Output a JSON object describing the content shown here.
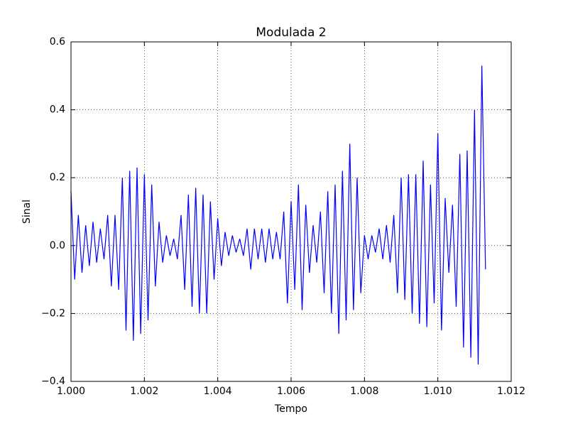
{
  "chart_data": {
    "type": "line",
    "title": "Modulada 2",
    "x_label": "Tempo",
    "y_label": "Sinal",
    "x": [
      1.0,
      1.0001,
      1.0002,
      1.0003,
      1.0004,
      1.0005,
      1.0006,
      1.0007,
      1.0008,
      1.0009,
      1.001,
      1.0011,
      1.0012,
      1.0013,
      1.0014,
      1.0015,
      1.0016,
      1.0017,
      1.0018,
      1.0019,
      1.002,
      1.0021,
      1.0022,
      1.0023,
      1.0024,
      1.0025,
      1.0026,
      1.0027,
      1.0028,
      1.0029,
      1.003,
      1.0031,
      1.0032,
      1.0033,
      1.0034,
      1.0035,
      1.0036,
      1.0037,
      1.0038,
      1.0039,
      1.004,
      1.0041,
      1.0042,
      1.0043,
      1.0044,
      1.0045,
      1.0046,
      1.0047,
      1.0048,
      1.0049,
      1.005,
      1.0051,
      1.0052,
      1.0053,
      1.0054,
      1.0055,
      1.0056,
      1.0057,
      1.0058,
      1.0059,
      1.006,
      1.0061,
      1.0062,
      1.0063,
      1.0064,
      1.0065,
      1.0066,
      1.0067,
      1.0068,
      1.0069,
      1.007,
      1.0071,
      1.0072,
      1.0073,
      1.0074,
      1.0075,
      1.0076,
      1.0077,
      1.0078,
      1.0079,
      1.008,
      1.0081,
      1.0082,
      1.0083,
      1.0084,
      1.0085,
      1.0086,
      1.0087,
      1.0088,
      1.0089,
      1.009,
      1.0091,
      1.0092,
      1.0093,
      1.0094,
      1.0095,
      1.0096,
      1.0097,
      1.0098,
      1.0099,
      1.01,
      1.0101,
      1.0102,
      1.0103,
      1.0104,
      1.0105,
      1.0106,
      1.0107,
      1.0108,
      1.0109,
      1.011,
      1.0111,
      1.0112,
      1.0113
    ],
    "series": [
      {
        "color": "#0000ff",
        "values": [
          0.16,
          -0.1,
          0.09,
          -0.08,
          0.06,
          -0.06,
          0.07,
          -0.05,
          0.05,
          -0.04,
          0.09,
          -0.12,
          0.09,
          -0.13,
          0.2,
          -0.25,
          0.22,
          -0.28,
          0.23,
          -0.26,
          0.21,
          -0.22,
          0.18,
          -0.12,
          0.07,
          -0.05,
          0.03,
          -0.03,
          0.02,
          -0.04,
          0.09,
          -0.13,
          0.15,
          -0.18,
          0.17,
          -0.2,
          0.15,
          -0.2,
          0.13,
          -0.1,
          0.08,
          -0.06,
          0.04,
          -0.03,
          0.03,
          -0.02,
          0.02,
          -0.03,
          0.05,
          -0.07,
          0.05,
          -0.04,
          0.05,
          -0.05,
          0.05,
          -0.04,
          0.04,
          -0.04,
          0.1,
          -0.17,
          0.13,
          -0.13,
          0.18,
          -0.19,
          0.12,
          -0.08,
          0.06,
          -0.05,
          0.1,
          -0.14,
          0.16,
          -0.2,
          0.18,
          -0.26,
          0.22,
          -0.22,
          0.3,
          -0.19,
          0.2,
          -0.14,
          0.03,
          -0.04,
          0.03,
          -0.02,
          0.05,
          -0.04,
          0.06,
          -0.05,
          0.09,
          -0.14,
          0.2,
          -0.16,
          0.21,
          -0.2,
          0.21,
          -0.23,
          0.25,
          -0.24,
          0.18,
          -0.17,
          0.33,
          -0.25,
          0.14,
          -0.08,
          0.12,
          -0.18,
          0.27,
          -0.3,
          0.28,
          -0.33,
          0.4,
          -0.35,
          0.53,
          -0.07
        ]
      }
    ],
    "xlim": [
      1.0,
      1.012
    ],
    "xticks": [
      {
        "value": 1.0,
        "label": "1.000"
      },
      {
        "value": 1.002,
        "label": "1.002"
      },
      {
        "value": 1.004,
        "label": "1.004"
      },
      {
        "value": 1.006,
        "label": "1.006"
      },
      {
        "value": 1.008,
        "label": "1.008"
      },
      {
        "value": 1.01,
        "label": "1.010"
      },
      {
        "value": 1.012,
        "label": "1.012"
      }
    ],
    "ylim": [
      -0.4,
      0.6
    ],
    "yticks": [
      {
        "value": -0.4,
        "label": "−0.4"
      },
      {
        "value": -0.2,
        "label": "−0.2"
      },
      {
        "value": 0,
        "label": "0.0"
      },
      {
        "value": 0.2,
        "label": "0.2"
      },
      {
        "value": 0.4,
        "label": "0.4"
      },
      {
        "value": 0.6,
        "label": "0.6"
      }
    ],
    "grid": true
  }
}
